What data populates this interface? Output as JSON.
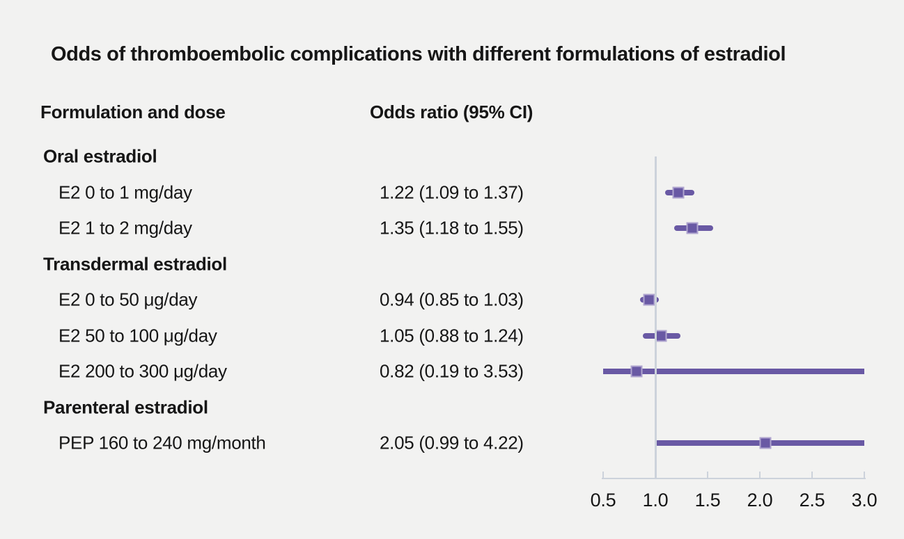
{
  "title": "Odds of thromboembolic complications with different formulations of estradiol",
  "columns": {
    "formulation": "Formulation and dose",
    "odds_ratio": "Odds ratio (95% CI)"
  },
  "colors": {
    "background": "#f2f2f1",
    "text": "#161616",
    "marker": "#6959a4",
    "marker_border": "#b0a5cf",
    "axis_line": "#ccd2db"
  },
  "chart_data": {
    "type": "forest",
    "title": "Odds of thromboembolic complications with different formulations of estradiol",
    "xlabel": "",
    "ylabel": "",
    "xlim": [
      0.5,
      3.0
    ],
    "ref_line": 1.0,
    "grid": false,
    "legend": false,
    "axis_ticks": [
      0.5,
      1.0,
      1.5,
      2.0,
      2.5,
      3.0
    ],
    "tick_labels": [
      "0.5",
      "1.0",
      "1.5",
      "2.0",
      "2.5",
      "3.0"
    ],
    "rows": [
      {
        "type": "group",
        "label": "Oral estradiol"
      },
      {
        "type": "item",
        "label": "E2 0 to 1 mg/day",
        "value_text": "1.22 (1.09 to 1.37)",
        "estimate": 1.22,
        "ci_low": 1.09,
        "ci_high": 1.37
      },
      {
        "type": "item",
        "label": "E2 1 to 2 mg/day",
        "value_text": "1.35 (1.18 to 1.55)",
        "estimate": 1.35,
        "ci_low": 1.18,
        "ci_high": 1.55
      },
      {
        "type": "group",
        "label": "Transdermal estradiol"
      },
      {
        "type": "item",
        "label": "E2 0 to 50 μg/day",
        "value_text": "0.94 (0.85 to 1.03)",
        "estimate": 0.94,
        "ci_low": 0.85,
        "ci_high": 1.03
      },
      {
        "type": "item",
        "label": "E2 50 to 100 μg/day",
        "value_text": "1.05 (0.88 to 1.24)",
        "estimate": 1.05,
        "ci_low": 0.88,
        "ci_high": 1.24
      },
      {
        "type": "item",
        "label": "E2 200 to 300 μg/day",
        "value_text": "0.82 (0.19 to 3.53)",
        "estimate": 0.82,
        "ci_low": 0.19,
        "ci_high": 3.53
      },
      {
        "type": "group",
        "label": "Parenteral estradiol"
      },
      {
        "type": "item",
        "label": "PEP 160 to 240 mg/month",
        "value_text": "2.05 (0.99 to 4.22)",
        "estimate": 2.05,
        "ci_low": 0.99,
        "ci_high": 4.22
      }
    ]
  }
}
